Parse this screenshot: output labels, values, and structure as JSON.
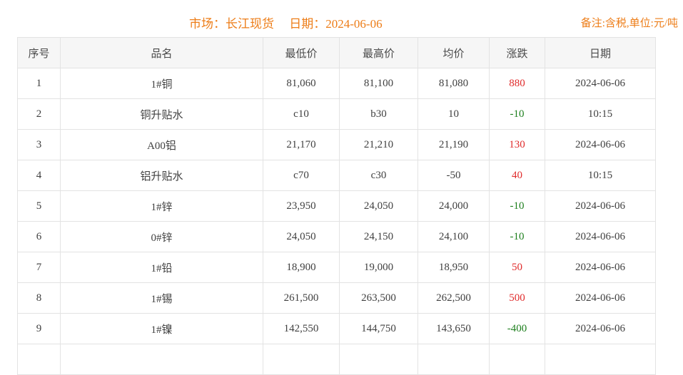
{
  "header": {
    "market_label": "市场：长江现货",
    "date_label": "日期：2024-06-06",
    "remark": "备注:含税,单位:元/吨",
    "accent_color": "#ed7d18"
  },
  "table": {
    "columns": [
      "序号",
      "品名",
      "最低价",
      "最高价",
      "均价",
      "涨跌",
      "日期"
    ],
    "rows": [
      {
        "index": "1",
        "name": "1#铜",
        "low": "81,060",
        "high": "81,100",
        "avg": "81,080",
        "change": "880",
        "trend": "up",
        "date": "2024-06-06"
      },
      {
        "index": "2",
        "name": "铜升贴水",
        "low": "c10",
        "high": "b30",
        "avg": "10",
        "change": "-10",
        "trend": "down",
        "date": "10:15"
      },
      {
        "index": "3",
        "name": "A00铝",
        "low": "21,170",
        "high": "21,210",
        "avg": "21,190",
        "change": "130",
        "trend": "up",
        "date": "2024-06-06"
      },
      {
        "index": "4",
        "name": "铝升贴水",
        "low": "c70",
        "high": "c30",
        "avg": "-50",
        "change": "40",
        "trend": "up",
        "date": "10:15"
      },
      {
        "index": "5",
        "name": "1#锌",
        "low": "23,950",
        "high": "24,050",
        "avg": "24,000",
        "change": "-10",
        "trend": "down",
        "date": "2024-06-06"
      },
      {
        "index": "6",
        "name": "0#锌",
        "low": "24,050",
        "high": "24,150",
        "avg": "24,100",
        "change": "-10",
        "trend": "down",
        "date": "2024-06-06"
      },
      {
        "index": "7",
        "name": "1#铅",
        "low": "18,900",
        "high": "19,000",
        "avg": "18,950",
        "change": "50",
        "trend": "up",
        "date": "2024-06-06"
      },
      {
        "index": "8",
        "name": "1#锡",
        "low": "261,500",
        "high": "263,500",
        "avg": "262,500",
        "change": "500",
        "trend": "up",
        "date": "2024-06-06"
      },
      {
        "index": "9",
        "name": "1#镍",
        "low": "142,550",
        "high": "144,750",
        "avg": "143,650",
        "change": "-400",
        "trend": "down",
        "date": "2024-06-06"
      }
    ],
    "colors": {
      "up": "#e02b2b",
      "down": "#1d7f1d",
      "header_bg": "#f6f6f6",
      "border": "#e3e3e3",
      "text": "#404040"
    }
  }
}
